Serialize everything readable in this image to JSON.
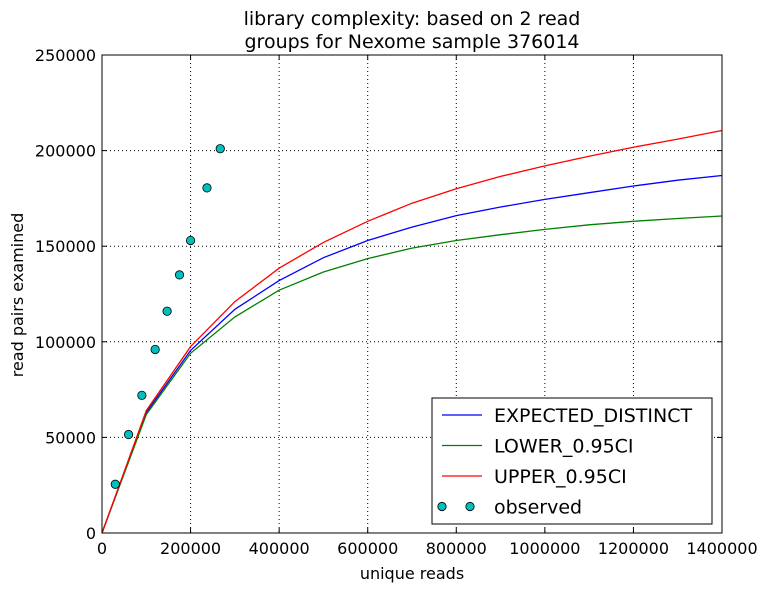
{
  "chart_data": {
    "type": "line",
    "title_lines": [
      "library complexity: based on 2 read",
      "groups for Nexome sample 376014"
    ],
    "xlabel": "unique reads",
    "ylabel": "read pairs examined",
    "xlim": [
      0,
      1400000
    ],
    "ylim": [
      0,
      250000
    ],
    "xticks": [
      0,
      200000,
      400000,
      600000,
      800000,
      1000000,
      1200000,
      1400000
    ],
    "xtick_labels": [
      "0",
      "200000",
      "400000",
      "600000",
      "800000",
      "1000000",
      "1200000",
      "1400000"
    ],
    "yticks": [
      0,
      50000,
      100000,
      150000,
      200000,
      250000
    ],
    "ytick_labels": [
      "0",
      "50000",
      "100000",
      "150000",
      "200000",
      "250000"
    ],
    "grid": true,
    "legend_position": "lower-right",
    "series": [
      {
        "name": "EXPECTED_DISTINCT",
        "color": "#0000ff",
        "kind": "line",
        "points": [
          [
            0,
            0
          ],
          [
            100000,
            63000
          ],
          [
            200000,
            95500
          ],
          [
            300000,
            117000
          ],
          [
            400000,
            132000
          ],
          [
            500000,
            144000
          ],
          [
            600000,
            153000
          ],
          [
            700000,
            160000
          ],
          [
            800000,
            166000
          ],
          [
            900000,
            170500
          ],
          [
            1000000,
            174500
          ],
          [
            1100000,
            178000
          ],
          [
            1200000,
            181500
          ],
          [
            1300000,
            184500
          ],
          [
            1400000,
            187000
          ]
        ]
      },
      {
        "name": "LOWER_0.95CI",
        "color": "#008000",
        "kind": "line",
        "points": [
          [
            0,
            0
          ],
          [
            100000,
            62000
          ],
          [
            200000,
            94000
          ],
          [
            300000,
            113000
          ],
          [
            400000,
            127000
          ],
          [
            500000,
            136500
          ],
          [
            600000,
            143500
          ],
          [
            700000,
            149000
          ],
          [
            800000,
            153000
          ],
          [
            900000,
            156000
          ],
          [
            1000000,
            158800
          ],
          [
            1100000,
            161200
          ],
          [
            1200000,
            163000
          ],
          [
            1300000,
            164500
          ],
          [
            1400000,
            165800
          ]
        ]
      },
      {
        "name": "UPPER_0.95CI",
        "color": "#ff0000",
        "kind": "line",
        "points": [
          [
            0,
            0
          ],
          [
            100000,
            64000
          ],
          [
            200000,
            97500
          ],
          [
            300000,
            121000
          ],
          [
            400000,
            138500
          ],
          [
            500000,
            152000
          ],
          [
            600000,
            163000
          ],
          [
            700000,
            172500
          ],
          [
            800000,
            180000
          ],
          [
            900000,
            186500
          ],
          [
            1000000,
            192000
          ],
          [
            1100000,
            197000
          ],
          [
            1200000,
            201800
          ],
          [
            1300000,
            206000
          ],
          [
            1400000,
            210500
          ]
        ]
      },
      {
        "name": "observed",
        "color": "#00bfbf",
        "kind": "markers",
        "points": [
          [
            30000,
            25500
          ],
          [
            60000,
            51500
          ],
          [
            90000,
            72000
          ],
          [
            120000,
            96000
          ],
          [
            147000,
            116000
          ],
          [
            175000,
            135000
          ],
          [
            200000,
            153000
          ],
          [
            237000,
            180500
          ],
          [
            267000,
            201000
          ]
        ]
      }
    ]
  }
}
